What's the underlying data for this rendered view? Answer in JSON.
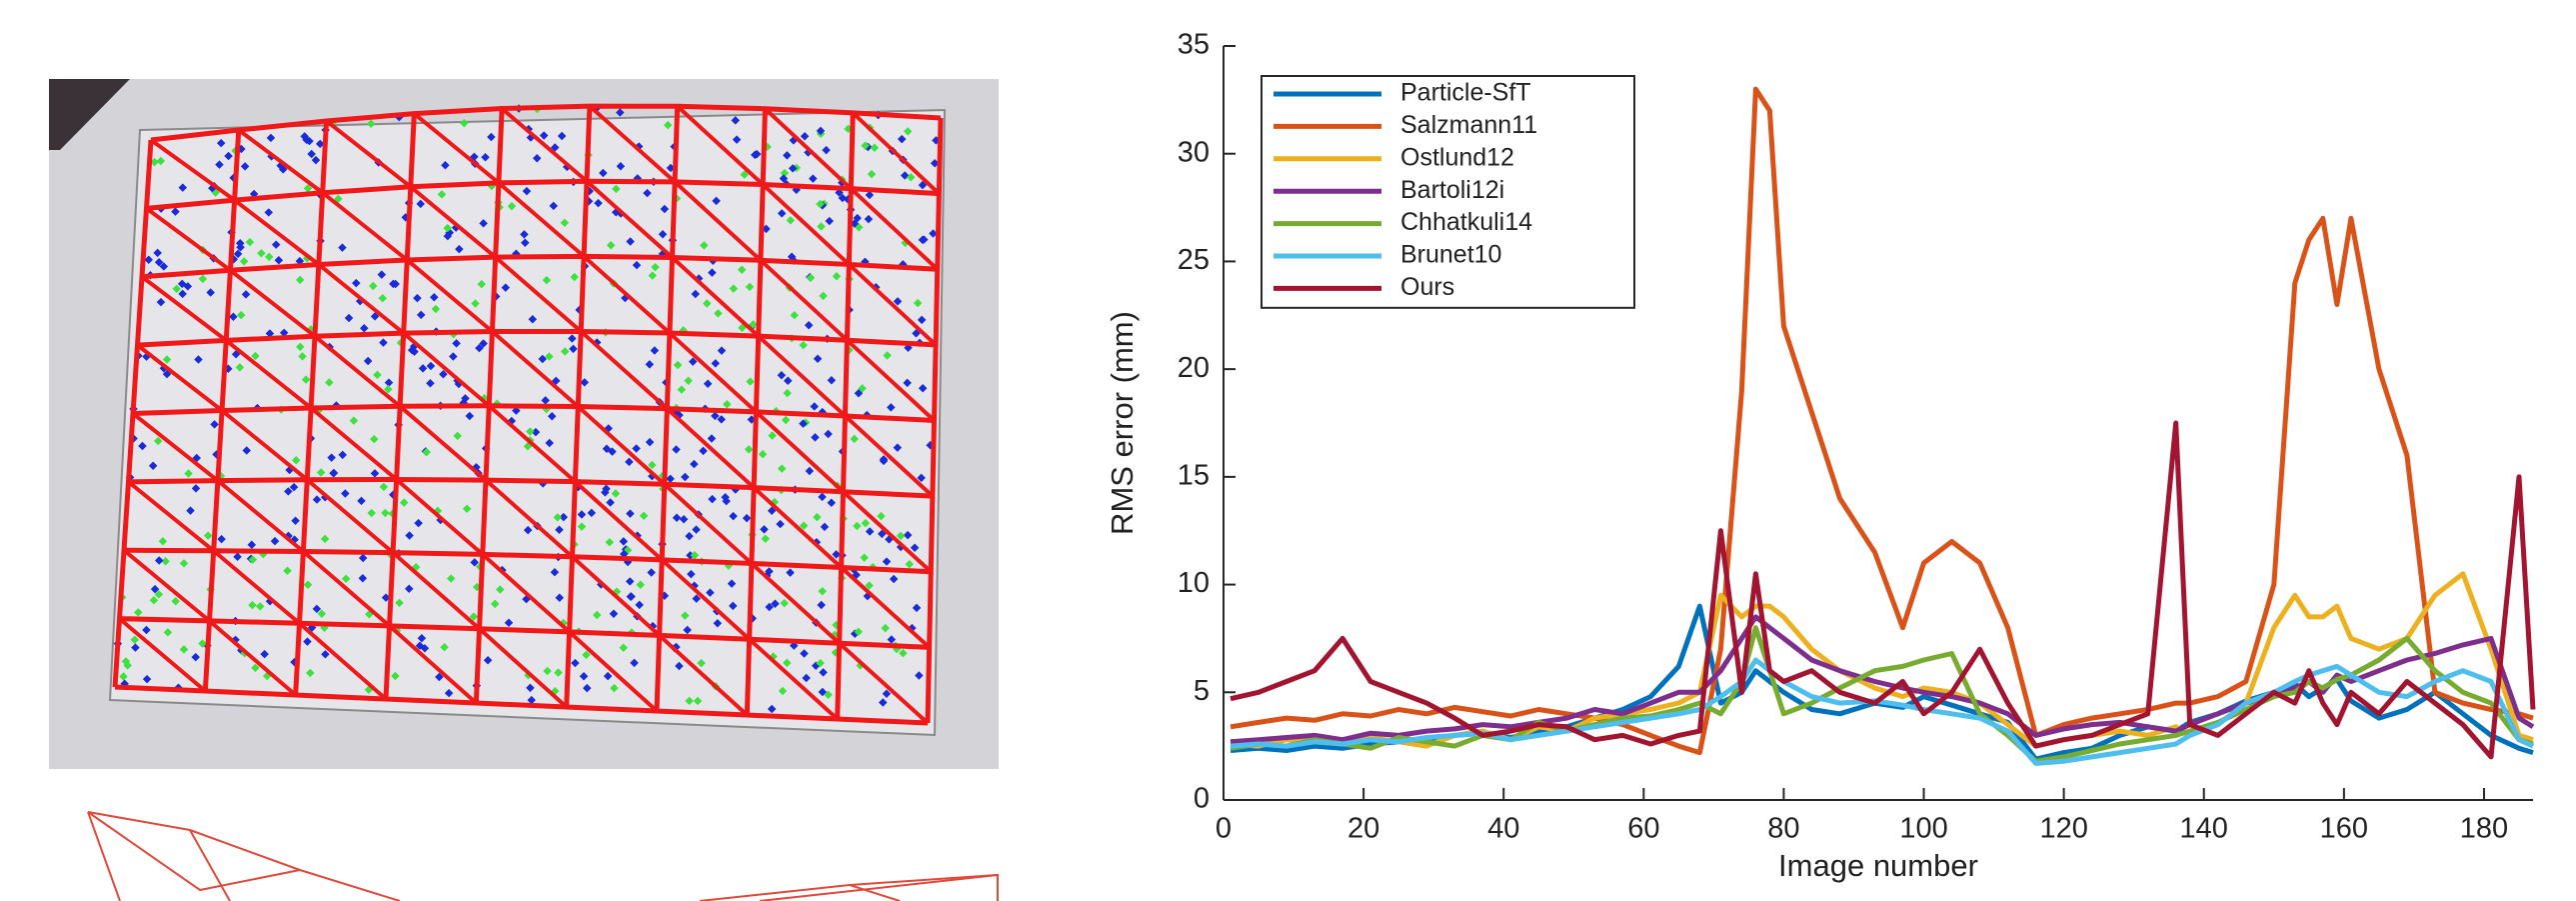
{
  "chart_data": {
    "type": "line",
    "xlabel": "Image number",
    "ylabel": "RMS error (mm)",
    "x": [
      1,
      5,
      9,
      13,
      17,
      21,
      25,
      29,
      33,
      37,
      41,
      45,
      49,
      53,
      57,
      61,
      65,
      68,
      71,
      74,
      76,
      78,
      80,
      84,
      88,
      93,
      97,
      100,
      104,
      108,
      112,
      116,
      120,
      124,
      128,
      132,
      136,
      138,
      142,
      146,
      150,
      153,
      155,
      157,
      159,
      161,
      165,
      169,
      173,
      177,
      181,
      185,
      187
    ],
    "series": [
      {
        "name": "Particle-SfT",
        "color": "#0072bd",
        "values": [
          2.3,
          2.4,
          2.3,
          2.5,
          2.4,
          2.6,
          2.7,
          2.8,
          3.0,
          3.1,
          2.9,
          3.2,
          3.4,
          3.8,
          4.2,
          4.8,
          6.2,
          9.0,
          4.5,
          5.0,
          6.0,
          5.5,
          5.0,
          4.2,
          4.0,
          4.5,
          4.3,
          4.8,
          4.4,
          4.0,
          3.6,
          1.9,
          2.2,
          2.4,
          3.0,
          3.4,
          3.2,
          3.6,
          4.0,
          4.6,
          5.0,
          5.4,
          4.8,
          5.2,
          5.6,
          4.6,
          3.8,
          4.2,
          5.0,
          4.0,
          3.0,
          2.4,
          2.2
        ]
      },
      {
        "name": "Salzmann11",
        "color": "#d95319",
        "values": [
          3.4,
          3.6,
          3.8,
          3.7,
          4.0,
          3.9,
          4.2,
          4.0,
          4.3,
          4.1,
          3.9,
          4.2,
          4.0,
          3.8,
          3.5,
          3.0,
          2.5,
          2.2,
          7.0,
          19,
          33,
          32,
          22,
          18,
          14,
          11.5,
          8,
          11,
          12,
          11,
          8,
          3,
          3.5,
          3.8,
          4,
          4.2,
          4.5,
          4.5,
          4.8,
          5.5,
          10,
          24,
          26,
          27,
          23,
          27,
          20,
          16,
          5,
          4.5,
          4.2,
          4.0,
          3.8
        ]
      },
      {
        "name": "Ostlund12",
        "color": "#edb120",
        "values": [
          2.6,
          2.5,
          2.8,
          2.7,
          2.6,
          2.9,
          2.7,
          2.5,
          3.0,
          3.2,
          2.8,
          3.4,
          3.2,
          3.8,
          4.0,
          4.2,
          4.5,
          5.0,
          9.5,
          8.5,
          9.0,
          9.0,
          8.5,
          7.0,
          6.0,
          5.2,
          4.8,
          5.2,
          5.0,
          4.5,
          3.5,
          2.5,
          2.8,
          3.0,
          3.2,
          3.0,
          3.4,
          3.0,
          3.5,
          4.5,
          8.0,
          9.5,
          8.5,
          8.5,
          9.0,
          7.5,
          7.0,
          7.5,
          9.5,
          10.5,
          7.0,
          3.0,
          2.8
        ]
      },
      {
        "name": "Bartoli12i",
        "color": "#7e2f8e",
        "values": [
          2.7,
          2.8,
          2.9,
          3.0,
          2.8,
          3.1,
          3.0,
          3.2,
          3.3,
          3.5,
          3.4,
          3.6,
          3.8,
          4.2,
          4.0,
          4.5,
          5.0,
          5.0,
          6.0,
          7.5,
          8.5,
          8.0,
          7.5,
          6.5,
          6.0,
          5.5,
          5.2,
          5.0,
          4.8,
          4.5,
          4.0,
          3.0,
          3.3,
          3.5,
          3.6,
          3.4,
          3.2,
          3.5,
          4.0,
          4.5,
          4.8,
          5.2,
          5.5,
          5.0,
          5.8,
          5.5,
          6.0,
          6.5,
          6.8,
          7.2,
          7.5,
          3.8,
          3.4
        ]
      },
      {
        "name": "Chhatkuli14",
        "color": "#77ac30",
        "values": [
          2.4,
          2.6,
          2.5,
          2.8,
          2.6,
          2.4,
          2.9,
          2.7,
          2.5,
          3.0,
          2.8,
          3.6,
          3.2,
          3.5,
          3.8,
          3.9,
          4.2,
          4.5,
          4.0,
          5.5,
          8.0,
          6.0,
          4.0,
          4.5,
          5.2,
          6.0,
          6.2,
          6.5,
          6.8,
          4.0,
          3.0,
          1.8,
          2.0,
          2.3,
          2.6,
          2.8,
          3.0,
          3.2,
          3.6,
          4.2,
          4.8,
          5.0,
          5.5,
          5.2,
          5.6,
          5.8,
          6.5,
          7.5,
          6.0,
          5.0,
          4.5,
          2.8,
          2.6
        ]
      },
      {
        "name": "Brunet10",
        "color": "#4dbeee",
        "values": [
          2.5,
          2.6,
          2.5,
          2.7,
          2.6,
          2.8,
          2.7,
          2.9,
          3.0,
          3.1,
          2.8,
          3.0,
          3.2,
          3.4,
          3.6,
          3.8,
          4.0,
          4.2,
          4.8,
          5.5,
          6.5,
          6.0,
          5.5,
          4.8,
          4.5,
          4.6,
          4.4,
          4.2,
          4.0,
          3.8,
          3.2,
          1.7,
          1.8,
          2.0,
          2.2,
          2.4,
          2.6,
          3.0,
          3.5,
          4.5,
          5.0,
          5.5,
          5.8,
          6.0,
          6.2,
          5.8,
          5.0,
          4.8,
          5.5,
          6.0,
          5.5,
          2.8,
          2.5
        ]
      },
      {
        "name": "Ours",
        "color": "#a2142f",
        "values": [
          4.7,
          5.0,
          5.5,
          6.0,
          7.5,
          5.5,
          5.0,
          4.5,
          3.8,
          3.0,
          3.2,
          3.5,
          3.4,
          2.8,
          3.0,
          2.6,
          3.0,
          3.2,
          12.5,
          5.0,
          10.5,
          6.0,
          5.5,
          6.0,
          5.0,
          4.5,
          5.5,
          4.0,
          5.0,
          7.0,
          4.5,
          2.5,
          2.8,
          3.0,
          3.5,
          4.0,
          17.5,
          3.5,
          3.0,
          4.0,
          5.0,
          4.5,
          6.0,
          4.5,
          3.5,
          5.0,
          4.0,
          5.5,
          4.5,
          3.5,
          2.0,
          15.0,
          4.2
        ]
      }
    ],
    "xlim": [
      0,
      187
    ],
    "ylim": [
      0,
      35
    ],
    "xticks": [
      0,
      20,
      40,
      60,
      80,
      100,
      120,
      140,
      160,
      180
    ],
    "yticks": [
      0,
      5,
      10,
      15,
      20,
      25,
      30,
      35
    ],
    "legend": "upper left",
    "grid": false
  }
}
